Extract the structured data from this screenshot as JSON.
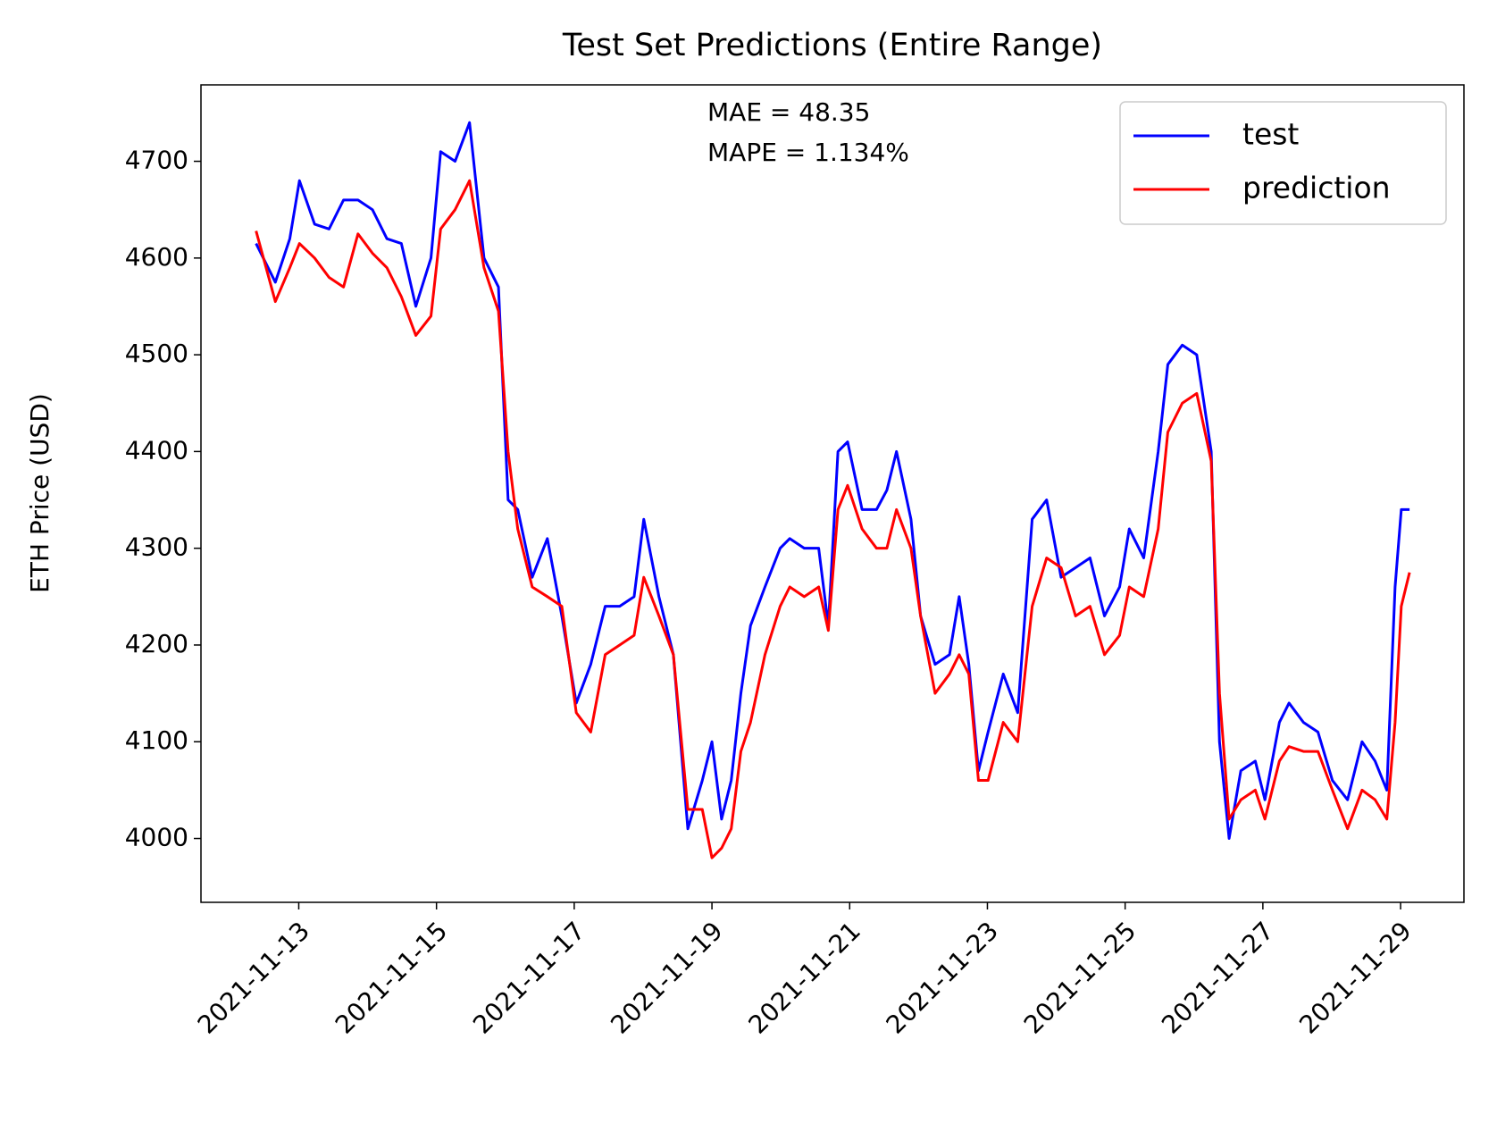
{
  "chart_data": {
    "type": "line",
    "title": "Test Set Predictions (Entire Range)",
    "y_label": "ETH Price (USD)",
    "annotations": [
      "MAE = 48.35",
      "MAPE = 1.134%"
    ],
    "x": [
      12.38,
      12.66,
      12.87,
      13.01,
      13.23,
      13.44,
      13.65,
      13.86,
      14.07,
      14.28,
      14.49,
      14.7,
      14.92,
      15.06,
      15.27,
      15.48,
      15.69,
      15.9,
      16.04,
      16.18,
      16.39,
      16.61,
      16.82,
      17.03,
      17.24,
      17.45,
      17.66,
      17.87,
      18.01,
      18.23,
      18.44,
      18.65,
      18.86,
      19.0,
      19.14,
      19.28,
      19.42,
      19.56,
      19.77,
      19.99,
      20.13,
      20.34,
      20.55,
      20.69,
      20.83,
      20.97,
      21.18,
      21.39,
      21.54,
      21.68,
      21.89,
      22.03,
      22.24,
      22.45,
      22.59,
      22.73,
      22.87,
      23.01,
      23.23,
      23.44,
      23.65,
      23.86,
      24.07,
      24.28,
      24.49,
      24.7,
      24.92,
      25.06,
      25.27,
      25.48,
      25.62,
      25.83,
      26.04,
      26.25,
      26.37,
      26.51,
      26.68,
      26.89,
      27.03,
      27.24,
      27.38,
      27.59,
      27.8,
      28.01,
      28.23,
      28.44,
      28.63,
      28.8,
      28.92,
      29.01,
      29.13
    ],
    "series": [
      {
        "name": "test",
        "color": "#0000ff",
        "values": [
          4615,
          4575,
          4620,
          4680,
          4635,
          4630,
          4660,
          4660,
          4650,
          4620,
          4615,
          4550,
          4600,
          4710,
          4700,
          4740,
          4600,
          4570,
          4350,
          4340,
          4270,
          4310,
          4230,
          4140,
          4180,
          4240,
          4240,
          4250,
          4330,
          4250,
          4190,
          4010,
          4060,
          4100,
          4020,
          4060,
          4150,
          4220,
          4260,
          4300,
          4310,
          4300,
          4300,
          4220,
          4400,
          4410,
          4340,
          4340,
          4360,
          4400,
          4330,
          4230,
          4180,
          4190,
          4250,
          4180,
          4070,
          4110,
          4170,
          4130,
          4330,
          4350,
          4270,
          4280,
          4290,
          4230,
          4260,
          4320,
          4290,
          4400,
          4490,
          4510,
          4500,
          4400,
          4100,
          4000,
          4070,
          4080,
          4040,
          4120,
          4140,
          4120,
          4110,
          4060,
          4040,
          4100,
          4080,
          4050,
          4260,
          4340,
          4340
        ]
      },
      {
        "name": "prediction",
        "color": "#ff0000",
        "values": [
          4628,
          4555,
          4590,
          4615,
          4600,
          4580,
          4570,
          4625,
          4605,
          4590,
          4560,
          4520,
          4540,
          4630,
          4650,
          4680,
          4590,
          4545,
          4400,
          4320,
          4260,
          4250,
          4240,
          4130,
          4110,
          4190,
          4200,
          4210,
          4270,
          4230,
          4190,
          4030,
          4030,
          3980,
          3990,
          4010,
          4090,
          4120,
          4190,
          4240,
          4260,
          4250,
          4260,
          4215,
          4340,
          4365,
          4320,
          4300,
          4300,
          4340,
          4300,
          4230,
          4150,
          4170,
          4190,
          4170,
          4060,
          4060,
          4120,
          4100,
          4240,
          4290,
          4280,
          4230,
          4240,
          4190,
          4210,
          4260,
          4250,
          4320,
          4420,
          4450,
          4460,
          4390,
          4150,
          4020,
          4040,
          4050,
          4020,
          4080,
          4095,
          4090,
          4090,
          4050,
          4010,
          4050,
          4040,
          4020,
          4120,
          4240,
          4275
        ]
      }
    ],
    "xlim": [
      11.58,
      29.92
    ],
    "xticks": [
      {
        "value": 13,
        "label": "2021-11-13"
      },
      {
        "value": 15,
        "label": "2021-11-15"
      },
      {
        "value": 17,
        "label": "2021-11-17"
      },
      {
        "value": 19,
        "label": "2021-11-19"
      },
      {
        "value": 21,
        "label": "2021-11-21"
      },
      {
        "value": 23,
        "label": "2021-11-23"
      },
      {
        "value": 25,
        "label": "2021-11-25"
      },
      {
        "value": 27,
        "label": "2021-11-27"
      },
      {
        "value": 29,
        "label": "2021-11-29"
      }
    ],
    "ylim": [
      3934,
      4779
    ],
    "yticks": [
      4000,
      4100,
      4200,
      4300,
      4400,
      4500,
      4600,
      4700
    ],
    "legend": "upper right"
  }
}
